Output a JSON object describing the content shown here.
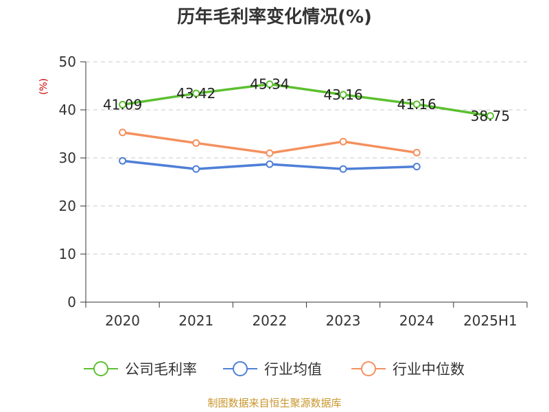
{
  "chart_data": {
    "type": "line",
    "title": "历年毛利率变化情况(%)",
    "ylabel": "(%)",
    "ylim": [
      0,
      50
    ],
    "yticks": [
      0,
      10,
      20,
      30,
      40,
      50
    ],
    "categories": [
      "2020",
      "2021",
      "2022",
      "2023",
      "2024",
      "2025H1"
    ],
    "grid": true,
    "legend_position": "bottom",
    "series": [
      {
        "name": "公司毛利率",
        "color": "#5cc030",
        "values": [
          41.09,
          43.42,
          45.34,
          43.16,
          41.16,
          38.75
        ],
        "labels": [
          "41.09",
          "43.42",
          "45.34",
          "43.16",
          "41.16",
          "38.75"
        ]
      },
      {
        "name": "行业均值",
        "color": "#4f7fd7",
        "values": [
          29.4,
          27.7,
          28.7,
          27.7,
          28.2,
          null
        ]
      },
      {
        "name": "行业中位数",
        "color": "#f4905e",
        "values": [
          35.3,
          33.1,
          31.0,
          33.4,
          31.1,
          null
        ]
      }
    ]
  },
  "footer": {
    "source": "制图数据来自恒生聚源数据库"
  }
}
